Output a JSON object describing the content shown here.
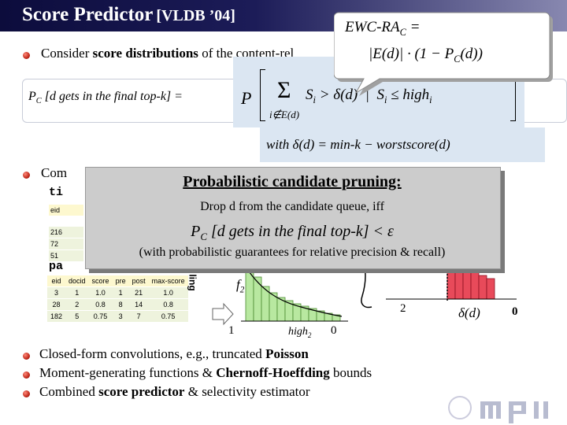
{
  "title": {
    "main": "Score Predictor",
    "venue": "[VLDB ’04]"
  },
  "bullet_1": {
    "before": "Consider ",
    "bold": "score distributions",
    "after": " of the content-rel"
  },
  "callout": {
    "lhs": "EWC-RA",
    "lhs_sub": "C",
    "equals": "=",
    "rhs": "|E(d)| · (1 − P",
    "rhs_sub": "C",
    "rhs_end": "(d))"
  },
  "definition": {
    "p": "P",
    "sub": "C",
    "rest": " [d gets in the final top-k] ="
  },
  "formula": {
    "prob": "P",
    "sum": "Σ",
    "sum_index": "i∉E(d)",
    "s1": "S",
    "i1": "i",
    "mid": " > δ(d)  |  S",
    "i2": "i",
    "le": " ≤ high",
    "i3": "i",
    "with": "with δ(d) = min-k − worstscore(d)"
  },
  "bullet_2_fragment": "Com",
  "code_fragments": [
    "ti",
    "pa"
  ],
  "table_fragment_1": {
    "header": "eid",
    "rows": [
      "216",
      "72",
      "51"
    ]
  },
  "table_2": {
    "columns": [
      "eid",
      "docid",
      "score",
      "pre",
      "post",
      "max-score"
    ],
    "rows": [
      [
        "3",
        "1",
        "1.0",
        "1",
        "21",
        "1.0"
      ],
      [
        "28",
        "2",
        "0.8",
        "8",
        "14",
        "0.8"
      ],
      [
        "182",
        "5",
        "0.75",
        "3",
        "7",
        "0.75"
      ]
    ]
  },
  "side_label": "ling",
  "histogram_1": {
    "label": "f",
    "label_sub": "2",
    "x_left": "1",
    "x_mid": "high",
    "x_mid_sub": "2",
    "x_right": "0"
  },
  "histogram_2": {
    "x_left": "2",
    "x_mid": "δ(d)",
    "x_right": "0"
  },
  "pruning": {
    "heading": "Probabilistic candidate pruning:",
    "line_1": "Drop d from the candidate queue, iff",
    "cond_p": "P",
    "cond_sub": "C",
    "cond_rest": " [d gets in the final top-k] < ε",
    "line_3": "(with probabilistic guarantees for relative precision & recall)"
  },
  "bullets": [
    {
      "before": "Closed-form convolutions, e.g., truncated ",
      "bold": "Poisson"
    },
    {
      "before": "Moment-generating functions & ",
      "bold": "Chernoff-Hoeffding",
      "after": " bounds"
    },
    {
      "before": "Combined ",
      "bold": "score predictor",
      "after": " & selectivity estimator"
    }
  ]
}
